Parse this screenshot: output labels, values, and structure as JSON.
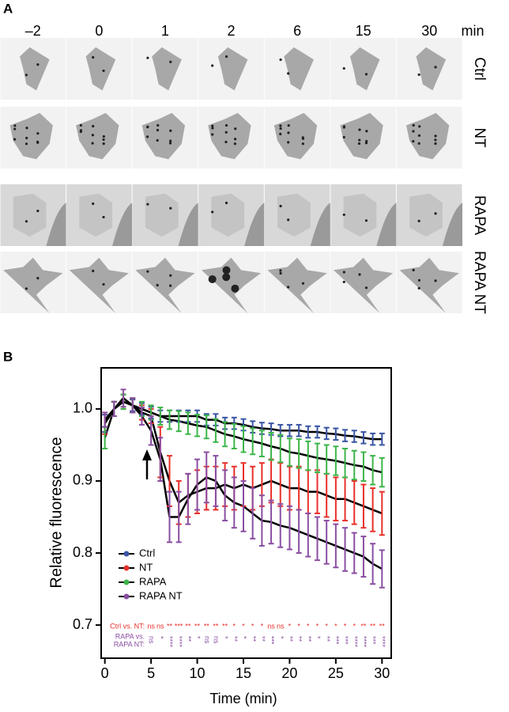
{
  "panel_a": {
    "label": "A",
    "times": [
      "–2",
      "0",
      "1",
      "2",
      "6",
      "15",
      "30"
    ],
    "unit": "min",
    "rows": [
      "Ctrl",
      "NT",
      "RAPA",
      "RAPA NT"
    ]
  },
  "chart_data": {
    "type": "line",
    "panel_label": "B",
    "x_label": "Time (min)",
    "y_label": "Relative fluorescence",
    "x": [
      0,
      1,
      2,
      3,
      4,
      5,
      6,
      7,
      8,
      9,
      10,
      11,
      12,
      13,
      14,
      15,
      16,
      17,
      18,
      19,
      20,
      21,
      22,
      23,
      24,
      25,
      26,
      27,
      28,
      29,
      30
    ],
    "xlim": [
      -0.4,
      31
    ],
    "xticks": [
      0,
      5,
      10,
      15,
      20,
      25,
      30
    ],
    "ylim": [
      0.654,
      1.057
    ],
    "yticks": [
      0.7,
      0.8,
      0.9,
      {
        "value": 1.0,
        "label": "1.0"
      }
    ],
    "line_color": "#000000",
    "legend": "lower left",
    "series": [
      {
        "name": "Ctrl",
        "color": "#3a55a4",
        "values": [
          0.98,
          1.0,
          1.01,
          1.005,
          1.0,
          0.995,
          0.99,
          0.99,
          0.99,
          0.99,
          0.99,
          0.985,
          0.985,
          0.98,
          0.98,
          0.978,
          0.975,
          0.973,
          0.972,
          0.97,
          0.97,
          0.97,
          0.968,
          0.968,
          0.966,
          0.965,
          0.963,
          0.962,
          0.96,
          0.958,
          0.958
        ],
        "errors": [
          0.012,
          0.01,
          0.01,
          0.008,
          0.008,
          0.008,
          0.008,
          0.008,
          0.008,
          0.008,
          0.008,
          0.008,
          0.008,
          0.008,
          0.008,
          0.008,
          0.008,
          0.008,
          0.008,
          0.008,
          0.008,
          0.008,
          0.008,
          0.008,
          0.008,
          0.008,
          0.008,
          0.008,
          0.008,
          0.008,
          0.008
        ]
      },
      {
        "name": "NT",
        "color": "#e8302a",
        "values": [
          0.98,
          1.0,
          1.01,
          1.005,
          0.995,
          0.99,
          0.94,
          0.9,
          0.87,
          0.88,
          0.885,
          0.89,
          0.89,
          0.895,
          0.89,
          0.895,
          0.89,
          0.895,
          0.9,
          0.895,
          0.89,
          0.89,
          0.885,
          0.885,
          0.88,
          0.875,
          0.875,
          0.87,
          0.865,
          0.86,
          0.855
        ],
        "errors": [
          0.015,
          0.01,
          0.01,
          0.01,
          0.01,
          0.01,
          0.035,
          0.035,
          0.03,
          0.03,
          0.03,
          0.03,
          0.03,
          0.03,
          0.03,
          0.03,
          0.03,
          0.03,
          0.03,
          0.03,
          0.03,
          0.03,
          0.03,
          0.03,
          0.03,
          0.03,
          0.03,
          0.03,
          0.03,
          0.03,
          0.03
        ]
      },
      {
        "name": "RAPA",
        "color": "#3db549",
        "values": [
          0.96,
          1.0,
          1.01,
          1.005,
          1.0,
          0.995,
          0.99,
          0.985,
          0.983,
          0.98,
          0.977,
          0.975,
          0.97,
          0.965,
          0.962,
          0.958,
          0.955,
          0.952,
          0.948,
          0.945,
          0.94,
          0.938,
          0.935,
          0.932,
          0.93,
          0.928,
          0.925,
          0.922,
          0.92,
          0.915,
          0.912
        ],
        "errors": [
          0.015,
          0.01,
          0.01,
          0.01,
          0.01,
          0.01,
          0.012,
          0.013,
          0.014,
          0.015,
          0.015,
          0.016,
          0.016,
          0.017,
          0.017,
          0.018,
          0.018,
          0.018,
          0.019,
          0.019,
          0.019,
          0.02,
          0.02,
          0.02,
          0.02,
          0.02,
          0.02,
          0.02,
          0.02,
          0.02,
          0.02
        ]
      },
      {
        "name": "RAPA NT",
        "color": "#8a4ea2",
        "values": [
          0.985,
          1.0,
          1.015,
          1.005,
          0.99,
          0.97,
          0.93,
          0.85,
          0.85,
          0.875,
          0.895,
          0.905,
          0.9,
          0.88,
          0.87,
          0.865,
          0.855,
          0.845,
          0.843,
          0.838,
          0.835,
          0.83,
          0.825,
          0.82,
          0.815,
          0.81,
          0.805,
          0.8,
          0.795,
          0.785,
          0.778
        ],
        "errors": [
          0.01,
          0.01,
          0.012,
          0.01,
          0.012,
          0.02,
          0.03,
          0.035,
          0.035,
          0.035,
          0.035,
          0.035,
          0.035,
          0.035,
          0.035,
          0.035,
          0.035,
          0.035,
          0.03,
          0.03,
          0.03,
          0.03,
          0.03,
          0.03,
          0.03,
          0.03,
          0.03,
          0.028,
          0.028,
          0.028,
          0.026
        ]
      }
    ],
    "significance": [
      {
        "label_lines": [
          "Ctrl vs. NT:"
        ],
        "color": "#e8302a",
        "vertical": false,
        "x": [
          5,
          6,
          7,
          8,
          9,
          10,
          11,
          12,
          13,
          14,
          15,
          16,
          17,
          18,
          19,
          20,
          21,
          22,
          23,
          24,
          25,
          26,
          27,
          28,
          29,
          30
        ],
        "labels": [
          "ns",
          "ns",
          "**",
          "***",
          "**",
          "**",
          "**",
          "**",
          "**",
          "*",
          "*",
          "*",
          "*",
          "ns",
          "ns",
          "*",
          "*",
          "*",
          "*",
          "*",
          "*",
          "*",
          "*",
          "**",
          "**",
          "**"
        ]
      },
      {
        "label_lines": [
          "RAPA vs.",
          "RAPA NT:"
        ],
        "color": "#8a4ea2",
        "vertical": true,
        "x": [
          5,
          6,
          7,
          8,
          9,
          10,
          11,
          12,
          13,
          14,
          15,
          16,
          17,
          18,
          19,
          20,
          21,
          22,
          23,
          24,
          25,
          26,
          27,
          28,
          29,
          30
        ],
        "labels": [
          "ns",
          "*",
          "****",
          "****",
          "**",
          "*",
          "ns",
          "ns",
          "*",
          "**",
          "*",
          "**",
          "**",
          "***",
          "*",
          "**",
          "**",
          "**",
          "*",
          "**",
          "***",
          "***",
          "****",
          "****",
          "***",
          "****"
        ]
      }
    ]
  }
}
